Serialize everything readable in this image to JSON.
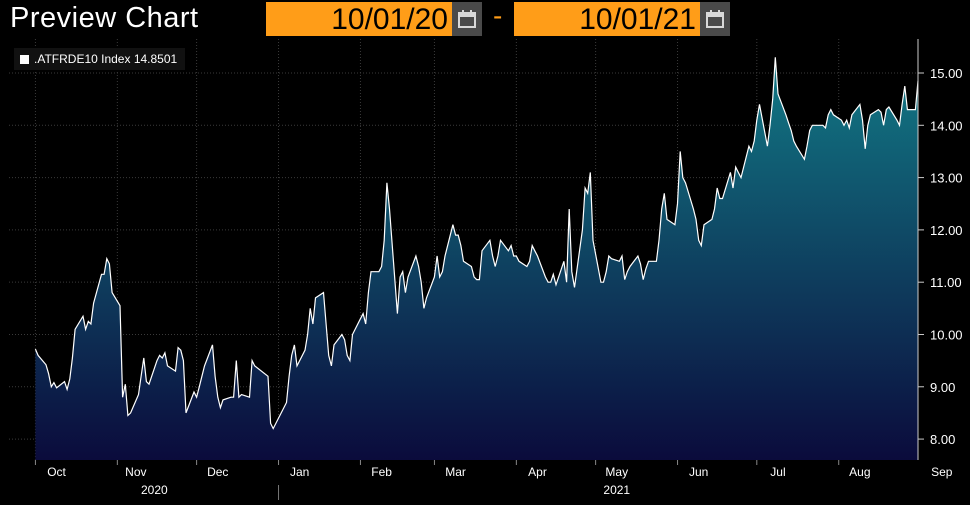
{
  "header": {
    "title": "Preview Chart",
    "start_date": "10/01/20",
    "end_date": "10/01/21",
    "separator": "-",
    "calendar_icon": "calendar-icon"
  },
  "legend": {
    "label": ".ATFRDE10 Index 14.8501"
  },
  "colors": {
    "accent": "#ff9d18",
    "line": "#ffffff",
    "area_top": "#127a86",
    "area_bottom": "#0b0b3c"
  },
  "chart_data": {
    "type": "area",
    "series": [
      {
        "name": ".ATFRDE10 Index",
        "last_value": 14.8501,
        "points": [
          [
            "2020-10-01",
            9.72
          ],
          [
            "2020-10-02",
            9.6
          ],
          [
            "2020-10-05",
            9.42
          ],
          [
            "2020-10-06",
            9.25
          ],
          [
            "2020-10-07",
            9.0
          ],
          [
            "2020-10-08",
            9.08
          ],
          [
            "2020-10-09",
            8.98
          ],
          [
            "2020-10-12",
            9.1
          ],
          [
            "2020-10-13",
            8.95
          ],
          [
            "2020-10-14",
            9.15
          ],
          [
            "2020-10-15",
            9.55
          ],
          [
            "2020-10-16",
            10.1
          ],
          [
            "2020-10-19",
            10.35
          ],
          [
            "2020-10-20",
            10.1
          ],
          [
            "2020-10-21",
            10.25
          ],
          [
            "2020-10-22",
            10.2
          ],
          [
            "2020-10-23",
            10.6
          ],
          [
            "2020-10-26",
            11.15
          ],
          [
            "2020-10-27",
            11.15
          ],
          [
            "2020-10-28",
            11.45
          ],
          [
            "2020-10-29",
            11.35
          ],
          [
            "2020-10-30",
            10.8
          ],
          [
            "2020-11-02",
            10.55
          ],
          [
            "2020-11-03",
            8.8
          ],
          [
            "2020-11-04",
            9.05
          ],
          [
            "2020-11-05",
            8.45
          ],
          [
            "2020-11-06",
            8.5
          ],
          [
            "2020-11-09",
            8.85
          ],
          [
            "2020-11-10",
            9.2
          ],
          [
            "2020-11-11",
            9.55
          ],
          [
            "2020-11-12",
            9.1
          ],
          [
            "2020-11-13",
            9.05
          ],
          [
            "2020-11-16",
            9.5
          ],
          [
            "2020-11-17",
            9.6
          ],
          [
            "2020-11-18",
            9.55
          ],
          [
            "2020-11-19",
            9.65
          ],
          [
            "2020-11-20",
            9.4
          ],
          [
            "2020-11-23",
            9.3
          ],
          [
            "2020-11-24",
            9.75
          ],
          [
            "2020-11-25",
            9.7
          ],
          [
            "2020-11-26",
            9.5
          ],
          [
            "2020-11-27",
            8.5
          ],
          [
            "2020-11-30",
            8.9
          ],
          [
            "2020-12-01",
            8.8
          ],
          [
            "2020-12-02",
            9.0
          ],
          [
            "2020-12-03",
            9.2
          ],
          [
            "2020-12-04",
            9.4
          ],
          [
            "2020-12-07",
            9.8
          ],
          [
            "2020-12-08",
            9.2
          ],
          [
            "2020-12-09",
            8.8
          ],
          [
            "2020-12-10",
            8.6
          ],
          [
            "2020-12-11",
            8.75
          ],
          [
            "2020-12-14",
            8.8
          ],
          [
            "2020-12-15",
            8.8
          ],
          [
            "2020-12-16",
            9.5
          ],
          [
            "2020-12-17",
            8.8
          ],
          [
            "2020-12-18",
            8.85
          ],
          [
            "2020-12-21",
            8.8
          ],
          [
            "2020-12-22",
            9.5
          ],
          [
            "2020-12-23",
            9.4
          ],
          [
            "2020-12-28",
            9.2
          ],
          [
            "2020-12-29",
            8.3
          ],
          [
            "2020-12-30",
            8.2
          ],
          [
            "2021-01-04",
            8.7
          ],
          [
            "2021-01-05",
            9.2
          ],
          [
            "2021-01-06",
            9.6
          ],
          [
            "2021-01-07",
            9.8
          ],
          [
            "2021-01-08",
            9.4
          ],
          [
            "2021-01-11",
            9.7
          ],
          [
            "2021-01-12",
            10.0
          ],
          [
            "2021-01-13",
            10.5
          ],
          [
            "2021-01-14",
            10.2
          ],
          [
            "2021-01-15",
            10.7
          ],
          [
            "2021-01-18",
            10.8
          ],
          [
            "2021-01-19",
            10.2
          ],
          [
            "2021-01-20",
            9.6
          ],
          [
            "2021-01-21",
            9.4
          ],
          [
            "2021-01-22",
            9.8
          ],
          [
            "2021-01-25",
            10.0
          ],
          [
            "2021-01-26",
            9.9
          ],
          [
            "2021-01-27",
            9.6
          ],
          [
            "2021-01-28",
            9.5
          ],
          [
            "2021-01-29",
            10.0
          ],
          [
            "2021-02-01",
            10.3
          ],
          [
            "2021-02-02",
            10.4
          ],
          [
            "2021-02-03",
            10.2
          ],
          [
            "2021-02-04",
            10.8
          ],
          [
            "2021-02-05",
            11.2
          ],
          [
            "2021-02-08",
            11.2
          ],
          [
            "2021-02-09",
            11.3
          ],
          [
            "2021-02-10",
            11.8
          ],
          [
            "2021-02-11",
            12.9
          ],
          [
            "2021-02-12",
            12.4
          ],
          [
            "2021-02-15",
            10.4
          ],
          [
            "2021-02-16",
            11.1
          ],
          [
            "2021-02-17",
            11.2
          ],
          [
            "2021-02-18",
            10.8
          ],
          [
            "2021-02-19",
            11.1
          ],
          [
            "2021-02-22",
            11.5
          ],
          [
            "2021-02-23",
            11.3
          ],
          [
            "2021-02-24",
            11.0
          ],
          [
            "2021-02-25",
            10.5
          ],
          [
            "2021-02-26",
            10.7
          ],
          [
            "2021-03-01",
            11.1
          ],
          [
            "2021-03-02",
            11.5
          ],
          [
            "2021-03-03",
            11.1
          ],
          [
            "2021-03-04",
            11.2
          ],
          [
            "2021-03-05",
            11.5
          ],
          [
            "2021-03-08",
            12.1
          ],
          [
            "2021-03-09",
            11.9
          ],
          [
            "2021-03-10",
            11.9
          ],
          [
            "2021-03-11",
            11.7
          ],
          [
            "2021-03-12",
            11.4
          ],
          [
            "2021-03-15",
            11.3
          ],
          [
            "2021-03-16",
            11.1
          ],
          [
            "2021-03-17",
            11.05
          ],
          [
            "2021-03-18",
            11.05
          ],
          [
            "2021-03-19",
            11.6
          ],
          [
            "2021-03-22",
            11.8
          ],
          [
            "2021-03-23",
            11.5
          ],
          [
            "2021-03-24",
            11.3
          ],
          [
            "2021-03-25",
            11.5
          ],
          [
            "2021-03-26",
            11.8
          ],
          [
            "2021-03-29",
            11.6
          ],
          [
            "2021-03-30",
            11.7
          ],
          [
            "2021-03-31",
            11.5
          ],
          [
            "2021-04-01",
            11.5
          ],
          [
            "2021-04-02",
            11.4
          ],
          [
            "2021-04-05",
            11.3
          ],
          [
            "2021-04-06",
            11.4
          ],
          [
            "2021-04-07",
            11.7
          ],
          [
            "2021-04-08",
            11.6
          ],
          [
            "2021-04-09",
            11.5
          ],
          [
            "2021-04-12",
            11.1
          ],
          [
            "2021-04-13",
            11.0
          ],
          [
            "2021-04-14",
            11.0
          ],
          [
            "2021-04-15",
            11.15
          ],
          [
            "2021-04-16",
            10.95
          ],
          [
            "2021-04-19",
            11.4
          ],
          [
            "2021-04-20",
            11.0
          ],
          [
            "2021-04-21",
            12.4
          ],
          [
            "2021-04-22",
            11.2
          ],
          [
            "2021-04-23",
            10.9
          ],
          [
            "2021-04-26",
            12.0
          ],
          [
            "2021-04-27",
            12.8
          ],
          [
            "2021-04-28",
            12.7
          ],
          [
            "2021-04-29",
            13.1
          ],
          [
            "2021-04-30",
            11.8
          ],
          [
            "2021-05-03",
            11.0
          ],
          [
            "2021-05-04",
            11.0
          ],
          [
            "2021-05-05",
            11.2
          ],
          [
            "2021-05-06",
            11.5
          ],
          [
            "2021-05-07",
            11.45
          ],
          [
            "2021-05-10",
            11.4
          ],
          [
            "2021-05-11",
            11.5
          ],
          [
            "2021-05-12",
            11.05
          ],
          [
            "2021-05-13",
            11.2
          ],
          [
            "2021-05-14",
            11.3
          ],
          [
            "2021-05-17",
            11.5
          ],
          [
            "2021-05-18",
            11.35
          ],
          [
            "2021-05-19",
            11.05
          ],
          [
            "2021-05-20",
            11.25
          ],
          [
            "2021-05-21",
            11.4
          ],
          [
            "2021-05-24",
            11.4
          ],
          [
            "2021-05-25",
            11.8
          ],
          [
            "2021-05-26",
            12.4
          ],
          [
            "2021-05-27",
            12.7
          ],
          [
            "2021-05-28",
            12.2
          ],
          [
            "2021-05-31",
            12.1
          ],
          [
            "2021-06-01",
            12.5
          ],
          [
            "2021-06-02",
            13.5
          ],
          [
            "2021-06-03",
            13.0
          ],
          [
            "2021-06-04",
            12.9
          ],
          [
            "2021-06-07",
            12.4
          ],
          [
            "2021-06-08",
            12.2
          ],
          [
            "2021-06-09",
            11.8
          ],
          [
            "2021-06-10",
            11.7
          ],
          [
            "2021-06-11",
            12.1
          ],
          [
            "2021-06-14",
            12.2
          ],
          [
            "2021-06-15",
            12.4
          ],
          [
            "2021-06-16",
            12.8
          ],
          [
            "2021-06-17",
            12.6
          ],
          [
            "2021-06-18",
            12.6
          ],
          [
            "2021-06-21",
            13.1
          ],
          [
            "2021-06-22",
            12.8
          ],
          [
            "2021-06-23",
            13.2
          ],
          [
            "2021-06-24",
            13.1
          ],
          [
            "2021-06-25",
            13.0
          ],
          [
            "2021-06-28",
            13.6
          ],
          [
            "2021-06-29",
            13.5
          ],
          [
            "2021-06-30",
            13.7
          ],
          [
            "2021-07-01",
            14.1
          ],
          [
            "2021-07-02",
            14.4
          ],
          [
            "2021-07-05",
            13.6
          ],
          [
            "2021-07-06",
            14.0
          ],
          [
            "2021-07-07",
            14.5
          ],
          [
            "2021-07-08",
            15.3
          ],
          [
            "2021-07-09",
            14.6
          ],
          [
            "2021-07-12",
            14.2
          ],
          [
            "2021-07-13",
            14.05
          ],
          [
            "2021-07-14",
            13.9
          ],
          [
            "2021-07-15",
            13.7
          ],
          [
            "2021-07-16",
            13.6
          ],
          [
            "2021-07-19",
            13.35
          ],
          [
            "2021-07-20",
            13.6
          ],
          [
            "2021-07-21",
            13.9
          ],
          [
            "2021-07-22",
            14.0
          ],
          [
            "2021-07-23",
            14.0
          ],
          [
            "2021-07-26",
            14.0
          ],
          [
            "2021-07-27",
            13.95
          ],
          [
            "2021-07-28",
            14.2
          ],
          [
            "2021-07-29",
            14.3
          ],
          [
            "2021-07-30",
            14.2
          ],
          [
            "2021-08-02",
            14.1
          ],
          [
            "2021-08-03",
            14.0
          ],
          [
            "2021-08-04",
            14.1
          ],
          [
            "2021-08-05",
            13.95
          ],
          [
            "2021-08-06",
            14.2
          ],
          [
            "2021-08-09",
            14.4
          ],
          [
            "2021-08-10",
            14.1
          ],
          [
            "2021-08-11",
            13.55
          ],
          [
            "2021-08-12",
            14.0
          ],
          [
            "2021-08-13",
            14.2
          ],
          [
            "2021-08-16",
            14.3
          ],
          [
            "2021-08-17",
            14.25
          ],
          [
            "2021-08-18",
            14.0
          ],
          [
            "2021-08-19",
            14.3
          ],
          [
            "2021-08-20",
            14.35
          ],
          [
            "2021-08-23",
            14.1
          ],
          [
            "2021-08-24",
            14.0
          ],
          [
            "2021-08-25",
            14.4
          ],
          [
            "2021-08-26",
            14.75
          ],
          [
            "2021-08-27",
            14.3
          ],
          [
            "2021-08-30",
            14.3
          ],
          [
            "2021-08-31",
            14.85
          ]
        ]
      }
    ],
    "xlim": [
      "2020-09-21",
      "2021-08-31"
    ],
    "ylim": [
      7.6,
      15.65
    ],
    "yticks": [
      8.0,
      9.0,
      10.0,
      11.0,
      12.0,
      13.0,
      14.0,
      15.0
    ],
    "ytick_labels": [
      "8.00",
      "9.00",
      "10.00",
      "11.00",
      "12.00",
      "13.00",
      "14.00",
      "15.00"
    ],
    "xticks": [
      {
        "label": "Oct",
        "date": "2020-10-09"
      },
      {
        "label": "Nov",
        "date": "2020-11-08"
      },
      {
        "label": "Dec",
        "date": "2020-12-09"
      },
      {
        "label": "Jan",
        "date": "2021-01-09"
      },
      {
        "label": "Feb",
        "date": "2021-02-09"
      },
      {
        "label": "Mar",
        "date": "2021-03-09"
      },
      {
        "label": "Apr",
        "date": "2021-04-09"
      },
      {
        "label": "May",
        "date": "2021-05-09"
      },
      {
        "label": "Jun",
        "date": "2021-06-09"
      },
      {
        "label": "Jul",
        "date": "2021-07-09"
      },
      {
        "label": "Aug",
        "date": "2021-08-09"
      },
      {
        "label": "Sep",
        "date": "2021-09-09"
      }
    ],
    "xtick_bounds": [
      "2020-10-01",
      "2020-11-01",
      "2020-12-01",
      "2021-01-01",
      "2021-02-01",
      "2021-03-01",
      "2021-04-01",
      "2021-05-01",
      "2021-06-01",
      "2021-07-01",
      "2021-08-01",
      "2021-09-01",
      "2021-10-01"
    ],
    "year_labels": [
      {
        "label": "2020",
        "date": "2020-11-15"
      },
      {
        "label": "2021",
        "date": "2021-05-09"
      }
    ],
    "year_divider": "2021-01-01",
    "title": "",
    "xlabel": "",
    "ylabel": "",
    "grid": true,
    "legend_position": "top-left"
  }
}
